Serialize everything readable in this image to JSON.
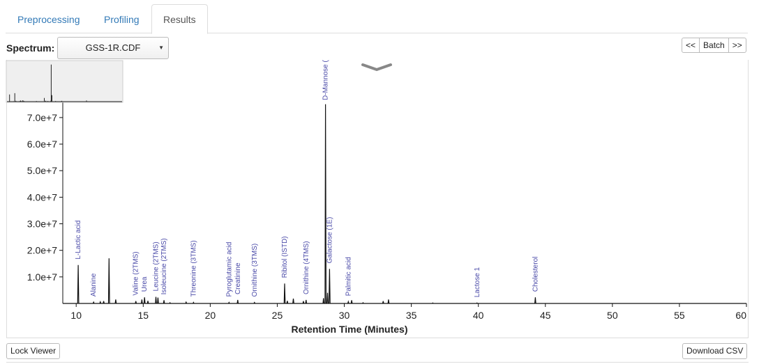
{
  "tabs": [
    {
      "label": "Preprocessing",
      "active": false
    },
    {
      "label": "Profiling",
      "active": false
    },
    {
      "label": "Results",
      "active": true
    }
  ],
  "spectrum": {
    "label": "Spectrum:",
    "selected": "GSS-1R.CDF"
  },
  "batch": {
    "prev": "<<",
    "label": "Batch",
    "next": ">>"
  },
  "footer": {
    "lock_viewer": "Lock Viewer",
    "download_csv": "Download CSV"
  },
  "icons": {
    "dropdown": "caret-down-icon",
    "collapse": "chevron-down-icon"
  },
  "chart_data": {
    "type": "line",
    "title": "",
    "xlabel": "Retention Time (Minutes)",
    "ylabel": "",
    "xlim": [
      9,
      60
    ],
    "ylim": [
      0,
      76000000
    ],
    "x_ticks": [
      10,
      15,
      20,
      25,
      30,
      35,
      40,
      45,
      50,
      55,
      60
    ],
    "y_ticks": [
      {
        "value": 10000000,
        "label": "1.0e+7"
      },
      {
        "value": 20000000,
        "label": "2.0e+7"
      },
      {
        "value": 30000000,
        "label": "3.0e+7"
      },
      {
        "value": 40000000,
        "label": "4.0e+7"
      },
      {
        "value": 50000000,
        "label": "5.0e+7"
      },
      {
        "value": 60000000,
        "label": "6.0e+7"
      },
      {
        "value": 70000000,
        "label": "7.0e+7"
      }
    ],
    "peaks": [
      {
        "x": 10.15,
        "y": 14500000
      },
      {
        "x": 11.3,
        "y": 500000
      },
      {
        "x": 11.8,
        "y": 600000
      },
      {
        "x": 12.05,
        "y": 900000
      },
      {
        "x": 12.45,
        "y": 17000000
      },
      {
        "x": 12.95,
        "y": 1500000
      },
      {
        "x": 14.45,
        "y": 900000
      },
      {
        "x": 14.9,
        "y": 1500000
      },
      {
        "x": 15.1,
        "y": 2300000
      },
      {
        "x": 15.35,
        "y": 1000000
      },
      {
        "x": 15.95,
        "y": 2500000
      },
      {
        "x": 16.1,
        "y": 2200000
      },
      {
        "x": 16.55,
        "y": 1200000
      },
      {
        "x": 17.0,
        "y": 300000
      },
      {
        "x": 18.2,
        "y": 500000
      },
      {
        "x": 18.75,
        "y": 400000
      },
      {
        "x": 21.4,
        "y": 400000
      },
      {
        "x": 22.05,
        "y": 1300000
      },
      {
        "x": 23.3,
        "y": 400000
      },
      {
        "x": 25.55,
        "y": 7500000
      },
      {
        "x": 25.75,
        "y": 1000000
      },
      {
        "x": 26.2,
        "y": 1800000
      },
      {
        "x": 26.95,
        "y": 900000
      },
      {
        "x": 27.15,
        "y": 1300000
      },
      {
        "x": 28.45,
        "y": 2000000
      },
      {
        "x": 28.6,
        "y": 75000000
      },
      {
        "x": 28.75,
        "y": 4000000
      },
      {
        "x": 28.9,
        "y": 13000000
      },
      {
        "x": 30.3,
        "y": 700000
      },
      {
        "x": 30.55,
        "y": 1200000
      },
      {
        "x": 31.4,
        "y": 300000
      },
      {
        "x": 32.9,
        "y": 900000
      },
      {
        "x": 33.3,
        "y": 1500000
      },
      {
        "x": 36.6,
        "y": 200000
      },
      {
        "x": 39.9,
        "y": 200000
      },
      {
        "x": 44.25,
        "y": 2300000
      }
    ],
    "annotations": [
      {
        "x": 10.15,
        "text": "L-Lactic acid"
      },
      {
        "x": 11.3,
        "text": "Alanine"
      },
      {
        "x": 14.45,
        "text": "Valine (2TMS)"
      },
      {
        "x": 15.1,
        "text": "Urea"
      },
      {
        "x": 15.95,
        "text": "Leucine (2TMS)"
      },
      {
        "x": 16.55,
        "text": "Isoleucine (2TMS)"
      },
      {
        "x": 18.75,
        "text": "Threonine (3TMS)"
      },
      {
        "x": 21.4,
        "text": "Pyroglutamic acid"
      },
      {
        "x": 22.05,
        "text": "Creatinine"
      },
      {
        "x": 23.3,
        "text": "Ornithine (3TMS)"
      },
      {
        "x": 25.55,
        "text": "Ribitol (ISTD)"
      },
      {
        "x": 27.15,
        "text": "Ornithine (4TMS)"
      },
      {
        "x": 28.6,
        "text": "D-Mannose ("
      },
      {
        "x": 28.9,
        "text": "Galactose (1E)"
      },
      {
        "x": 30.3,
        "text": "Palmitic acid"
      },
      {
        "x": 39.9,
        "text": "Lactose 1"
      },
      {
        "x": 44.25,
        "text": "Cholesterol"
      }
    ]
  }
}
